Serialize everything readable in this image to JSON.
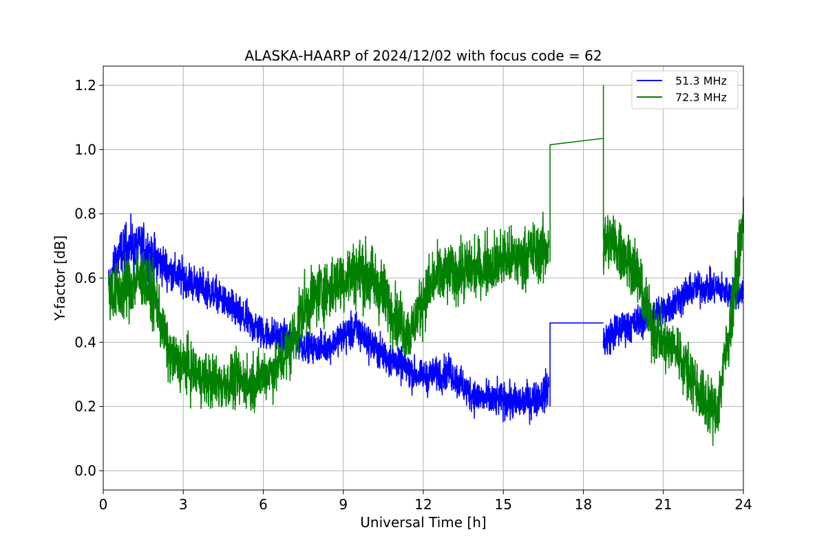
{
  "chart_data": {
    "type": "line",
    "title": "ALASKA-HAARP of 2024/12/02 with focus code = 62",
    "xlabel": "Universal Time [h]",
    "ylabel": "Y-factor [dB]",
    "xlim": [
      0,
      24
    ],
    "ylim": [
      -0.06,
      1.26
    ],
    "xticks": [
      0,
      3,
      6,
      9,
      12,
      15,
      18,
      21,
      24
    ],
    "yticks": [
      0.0,
      0.2,
      0.4,
      0.6,
      0.8,
      1.0,
      1.2
    ],
    "xtick_labels": [
      "0",
      "3",
      "6",
      "9",
      "12",
      "15",
      "18",
      "21",
      "24"
    ],
    "ytick_labels": [
      "0.0",
      "0.2",
      "0.4",
      "0.6",
      "0.8",
      "1.0",
      "1.2"
    ],
    "grid": true,
    "legend_position": "top-right",
    "series": [
      {
        "name": "51.3 MHz",
        "color": "#0000ff",
        "segments": [
          {
            "x": [
              0.2,
              0.5,
              1.0,
              1.5,
              2.0,
              2.5,
              3.0,
              3.5,
              4.0,
              4.5,
              5.0,
              5.5,
              6.0,
              6.5,
              7.0,
              7.5,
              8.0,
              8.5,
              9.0,
              9.5,
              10.0,
              10.5,
              11.0,
              11.5,
              12.0,
              12.5,
              13.0,
              13.5,
              14.0,
              14.5,
              15.0,
              15.5,
              16.0,
              16.5,
              16.7
            ],
            "y": [
              0.57,
              0.66,
              0.7,
              0.69,
              0.66,
              0.62,
              0.6,
              0.58,
              0.56,
              0.53,
              0.49,
              0.46,
              0.43,
              0.42,
              0.41,
              0.39,
              0.38,
              0.39,
              0.42,
              0.44,
              0.4,
              0.36,
              0.34,
              0.31,
              0.29,
              0.3,
              0.31,
              0.26,
              0.23,
              0.22,
              0.22,
              0.21,
              0.22,
              0.24,
              0.26
            ],
            "amp": [
              0.12,
              0.14,
              0.14,
              0.13,
              0.12,
              0.11,
              0.11,
              0.1,
              0.1,
              0.1,
              0.1,
              0.1,
              0.1,
              0.09,
              0.09,
              0.08,
              0.08,
              0.09,
              0.1,
              0.1,
              0.1,
              0.1,
              0.1,
              0.1,
              0.09,
              0.09,
              0.1,
              0.1,
              0.1,
              0.1,
              0.1,
              0.1,
              0.1,
              0.1,
              0.1
            ]
          },
          {
            "x": [
              16.75,
              16.75,
              18.75
            ],
            "y": [
              0.2,
              0.46,
              0.46
            ],
            "amp": [
              0,
              0,
              0
            ]
          },
          {
            "x": [
              18.75,
              19.0,
              19.5,
              20.0,
              20.5,
              21.0,
              21.5,
              22.0,
              22.5,
              23.0,
              23.5,
              24.0
            ],
            "y": [
              0.4,
              0.42,
              0.45,
              0.46,
              0.48,
              0.5,
              0.53,
              0.56,
              0.57,
              0.57,
              0.55,
              0.56
            ],
            "amp": [
              0.12,
              0.11,
              0.1,
              0.1,
              0.1,
              0.1,
              0.1,
              0.1,
              0.09,
              0.09,
              0.09,
              0.09
            ]
          }
        ]
      },
      {
        "name": "72.3 MHz",
        "color": "#008000",
        "segments": [
          {
            "x": [
              0.2,
              0.5,
              1.0,
              1.5,
              2.0,
              2.5,
              3.0,
              3.5,
              4.0,
              4.5,
              5.0,
              5.5,
              6.0,
              6.5,
              7.0,
              7.5,
              8.0,
              8.5,
              9.0,
              9.5,
              10.0,
              10.5,
              11.0,
              11.5,
              12.0,
              12.5,
              13.0,
              13.5,
              14.0,
              14.5,
              15.0,
              15.5,
              16.0,
              16.5,
              16.7
            ],
            "y": [
              0.56,
              0.55,
              0.58,
              0.6,
              0.52,
              0.35,
              0.33,
              0.3,
              0.28,
              0.27,
              0.28,
              0.27,
              0.3,
              0.32,
              0.38,
              0.5,
              0.55,
              0.57,
              0.6,
              0.62,
              0.6,
              0.55,
              0.48,
              0.42,
              0.54,
              0.6,
              0.62,
              0.62,
              0.63,
              0.64,
              0.66,
              0.66,
              0.68,
              0.68,
              0.7
            ],
            "amp": [
              0.16,
              0.18,
              0.18,
              0.17,
              0.17,
              0.15,
              0.15,
              0.15,
              0.15,
              0.15,
              0.15,
              0.15,
              0.15,
              0.15,
              0.16,
              0.17,
              0.17,
              0.18,
              0.18,
              0.19,
              0.19,
              0.18,
              0.17,
              0.16,
              0.17,
              0.17,
              0.17,
              0.17,
              0.17,
              0.17,
              0.17,
              0.17,
              0.17,
              0.17,
              0.17
            ]
          },
          {
            "x": [
              16.75,
              16.75,
              18.75,
              18.75,
              18.75
            ],
            "y": [
              0.65,
              1.015,
              1.035,
              1.2,
              0.72
            ],
            "amp": [
              0,
              0,
              0,
              0,
              0
            ]
          },
          {
            "x": [
              18.75,
              19.0,
              19.5,
              20.0,
              20.5,
              21.0,
              21.5,
              22.0,
              22.5,
              23.0,
              23.5,
              24.0
            ],
            "y": [
              0.7,
              0.72,
              0.68,
              0.62,
              0.46,
              0.4,
              0.38,
              0.3,
              0.22,
              0.18,
              0.45,
              0.78
            ],
            "amp": [
              0.18,
              0.18,
              0.18,
              0.17,
              0.17,
              0.16,
              0.16,
              0.16,
              0.16,
              0.16,
              0.17,
              0.17
            ]
          }
        ]
      }
    ]
  }
}
